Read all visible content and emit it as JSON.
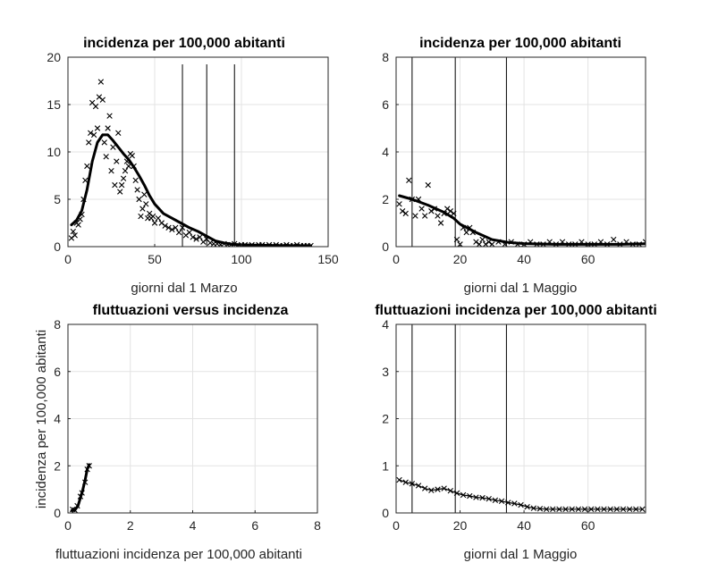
{
  "chart_data": [
    {
      "type": "scatter",
      "title": "incidenza per 100,000 abitanti",
      "xlabel": "giorni dal 1 Marzo",
      "ylabel": "",
      "xlim": [
        0,
        150
      ],
      "ylim": [
        0,
        20
      ],
      "xticks": [
        0,
        50,
        100,
        150
      ],
      "yticks": [
        0,
        5,
        10,
        15,
        20
      ],
      "grid": true,
      "vlines": [
        66,
        80,
        96
      ],
      "series": [
        {
          "style": "x-markers",
          "x": [
            2,
            3,
            4,
            5,
            6,
            7,
            8,
            9,
            10,
            11,
            12,
            13,
            14,
            15,
            16,
            17,
            18,
            19,
            20,
            21,
            22,
            23,
            24,
            25,
            26,
            27,
            28,
            29,
            30,
            31,
            32,
            33,
            34,
            35,
            36,
            37,
            38,
            39,
            40,
            41,
            42,
            43,
            44,
            45,
            46,
            47,
            48,
            49,
            50,
            52,
            54,
            56,
            58,
            60,
            62,
            64,
            66,
            68,
            70,
            72,
            74,
            76,
            78,
            80,
            82,
            84,
            86,
            88,
            90,
            92,
            94,
            96,
            98,
            100,
            102,
            104,
            106,
            108,
            110,
            112,
            114,
            116,
            118,
            120,
            122,
            124,
            126,
            128,
            130,
            132,
            134,
            136,
            138,
            140
          ],
          "y": [
            0.9,
            1.6,
            1.2,
            2.5,
            2.3,
            2.9,
            3.4,
            5.0,
            7.0,
            8.5,
            11.0,
            12.0,
            15.2,
            11.8,
            14.8,
            12.5,
            15.8,
            17.4,
            15.5,
            11.0,
            9.5,
            12.5,
            13.8,
            8.0,
            10.5,
            6.5,
            9.0,
            12.0,
            5.8,
            6.5,
            7.2,
            8.0,
            9.0,
            8.5,
            9.8,
            9.6,
            8.5,
            7.0,
            6.0,
            5.0,
            3.2,
            4.0,
            5.5,
            4.5,
            3.0,
            3.5,
            3.0,
            3.2,
            2.5,
            3.0,
            2.5,
            2.2,
            2.0,
            1.8,
            2.0,
            1.5,
            2.0,
            1.2,
            1.5,
            1.0,
            0.8,
            1.0,
            0.5,
            0.8,
            0.4,
            0.3,
            0.3,
            0.2,
            0.3,
            0.2,
            0.2,
            0.3,
            0.1,
            0.2,
            0.2,
            0.1,
            0.2,
            0.1,
            0.2,
            0.2,
            0.1,
            0.2,
            0.1,
            0.2,
            0.1,
            0.1,
            0.2,
            0.1,
            0.1,
            0.2,
            0.1,
            0.1,
            0.1,
            0.1
          ]
        },
        {
          "style": "thick-line",
          "x": [
            2,
            5,
            8,
            11,
            14,
            17,
            20,
            23,
            26,
            29,
            32,
            35,
            38,
            41,
            44,
            47,
            50,
            55,
            60,
            65,
            70,
            75,
            80,
            85,
            90,
            95,
            100,
            110,
            120,
            130,
            140
          ],
          "y": [
            2.3,
            2.8,
            3.8,
            6.0,
            9.0,
            11.0,
            11.8,
            11.8,
            11.2,
            10.5,
            9.8,
            9.2,
            8.4,
            7.5,
            6.5,
            5.4,
            4.5,
            3.5,
            3.0,
            2.5,
            2.0,
            1.6,
            1.1,
            0.6,
            0.4,
            0.25,
            0.2,
            0.15,
            0.12,
            0.1,
            0.1
          ]
        }
      ]
    },
    {
      "type": "scatter",
      "title": "incidenza per 100,000 abitanti",
      "xlabel": "giorni dal 1 Maggio",
      "ylabel": "",
      "xlim": [
        0,
        78
      ],
      "ylim": [
        0,
        8
      ],
      "xticks": [
        0,
        20,
        40,
        60
      ],
      "yticks": [
        0,
        2,
        4,
        6,
        8
      ],
      "grid": true,
      "vlines": [
        5,
        18.5,
        34.5
      ],
      "series": [
        {
          "style": "x-markers",
          "x": [
            1,
            2,
            3,
            4,
            5,
            6,
            7,
            8,
            9,
            10,
            11,
            12,
            13,
            14,
            15,
            16,
            17,
            18,
            19,
            20,
            21,
            22,
            23,
            24,
            25,
            26,
            27,
            28,
            29,
            30,
            32,
            34,
            36,
            38,
            40,
            42,
            44,
            46,
            48,
            50,
            52,
            54,
            56,
            58,
            60,
            62,
            64,
            66,
            68,
            70,
            72,
            74,
            76,
            78
          ],
          "y": [
            1.8,
            1.5,
            1.4,
            2.8,
            2.0,
            1.3,
            2.0,
            1.6,
            1.3,
            2.6,
            1.5,
            1.6,
            1.3,
            1.0,
            1.4,
            1.6,
            1.5,
            1.4,
            0.3,
            0.1,
            0.8,
            0.6,
            0.8,
            0.6,
            0.2,
            0.1,
            0.3,
            0.1,
            0.2,
            0.1,
            0.2,
            0.1,
            0.2,
            0.1,
            0.1,
            0.2,
            0.1,
            0.1,
            0.2,
            0.1,
            0.2,
            0.1,
            0.1,
            0.2,
            0.1,
            0.1,
            0.2,
            0.1,
            0.3,
            0.1,
            0.2,
            0.1,
            0.1,
            0.2
          ]
        },
        {
          "style": "thick-line",
          "x": [
            1,
            5,
            10,
            15,
            18,
            20,
            25,
            30,
            35,
            40,
            50,
            60,
            70,
            78
          ],
          "y": [
            2.15,
            2.0,
            1.75,
            1.45,
            1.2,
            0.95,
            0.6,
            0.3,
            0.18,
            0.13,
            0.1,
            0.1,
            0.1,
            0.12
          ]
        }
      ]
    },
    {
      "type": "scatter",
      "title": "fluttuazioni versus incidenza",
      "xlabel": "fluttuazioni incidenza per 100,000 abitanti",
      "ylabel": "incidenza per 100,000 abitanti",
      "xlim": [
        0,
        8
      ],
      "ylim": [
        0,
        8
      ],
      "xticks": [
        0,
        2,
        4,
        6,
        8
      ],
      "yticks": [
        0,
        2,
        4,
        6,
        8
      ],
      "grid": true,
      "vlines": [],
      "series": [
        {
          "style": "x-markers",
          "x": [
            0.15,
            0.22,
            0.3,
            0.4,
            0.45,
            0.55,
            0.62,
            0.68
          ],
          "y": [
            0.15,
            0.12,
            0.3,
            0.7,
            0.85,
            1.3,
            1.85,
            2.0
          ]
        },
        {
          "style": "thick-line",
          "x": [
            0.12,
            0.22,
            0.32,
            0.4,
            0.47,
            0.55,
            0.62,
            0.68
          ],
          "y": [
            0.1,
            0.12,
            0.3,
            0.65,
            0.95,
            1.4,
            1.85,
            2.05
          ]
        }
      ]
    },
    {
      "type": "line",
      "title": "fluttuazioni incidenza per 100,000 abitanti",
      "xlabel": "giorni dal 1 Maggio",
      "ylabel": "",
      "xlim": [
        0,
        78
      ],
      "ylim": [
        0,
        4
      ],
      "xticks": [
        0,
        20,
        40,
        60
      ],
      "yticks": [
        0,
        1,
        2,
        3,
        4
      ],
      "grid": true,
      "vlines": [
        5,
        18.5,
        34.5
      ],
      "series": [
        {
          "style": "x-line",
          "x": [
            1,
            3,
            5,
            7,
            9,
            11,
            13,
            15,
            17,
            19,
            21,
            23,
            25,
            27,
            29,
            31,
            33,
            35,
            37,
            39,
            41,
            43,
            45,
            47,
            49,
            51,
            53,
            55,
            57,
            59,
            61,
            63,
            65,
            67,
            69,
            71,
            73,
            75,
            77
          ],
          "y": [
            0.7,
            0.65,
            0.62,
            0.58,
            0.52,
            0.48,
            0.5,
            0.52,
            0.47,
            0.42,
            0.38,
            0.36,
            0.33,
            0.32,
            0.3,
            0.27,
            0.25,
            0.22,
            0.2,
            0.17,
            0.13,
            0.1,
            0.09,
            0.08,
            0.08,
            0.08,
            0.08,
            0.08,
            0.08,
            0.08,
            0.08,
            0.08,
            0.08,
            0.08,
            0.08,
            0.08,
            0.08,
            0.08,
            0.08
          ]
        }
      ]
    }
  ]
}
